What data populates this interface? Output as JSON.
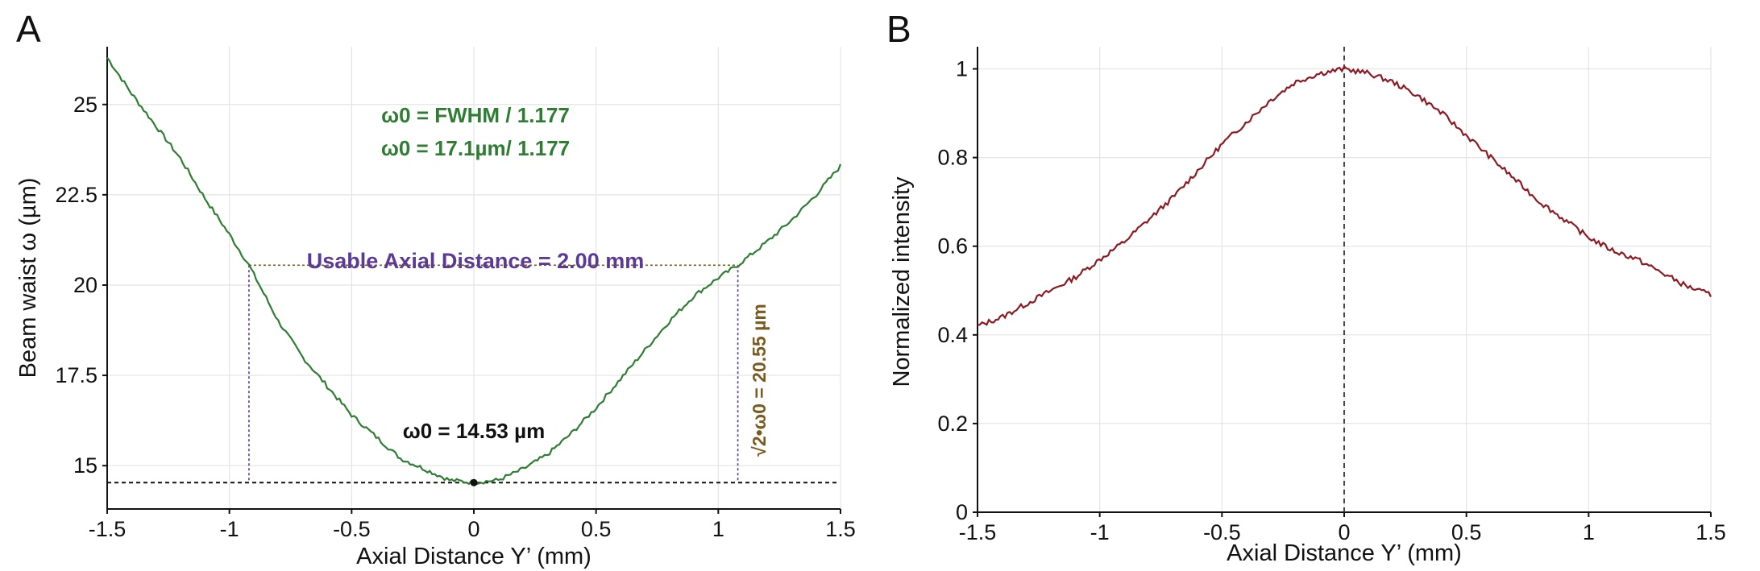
{
  "panels": {
    "a": {
      "letter": "A"
    },
    "b": {
      "letter": "B"
    }
  },
  "colors": {
    "curve_a": "#2e7d32",
    "curve_b": "#8b1a22",
    "usable": "#5b3a95",
    "threshold": "#7a5a1e",
    "baseline": "#111111",
    "grid": "#e4e4e4"
  },
  "annotations": {
    "formula_line1": "ω0 = FWHM / 1.177",
    "formula_line2": "ω0 = 17.1µm/ 1.177",
    "usable": "Usable Axial Distance = 2.00 mm",
    "min_waist": "ω0 = 14.53 µm",
    "threshold": "√2•ω0 = 20.55 µm"
  },
  "chart_data": [
    {
      "type": "line",
      "panel": "A",
      "xlabel": "Axial Distance Y’ (mm)",
      "ylabel": "Beam waist ω (µm)",
      "xlim": [
        -1.5,
        1.5
      ],
      "ylim": [
        13.8,
        26.6
      ],
      "xticks": [
        -1.5,
        -1,
        -0.5,
        0,
        0.5,
        1,
        1.5
      ],
      "xtick_labels": [
        "-1.5",
        "-1",
        "-0.5",
        "0",
        "0.5",
        "1",
        "1.5"
      ],
      "yticks": [
        15,
        17.5,
        20,
        22.5,
        25
      ],
      "ytick_labels": [
        "15",
        "17.5",
        "20",
        "22.5",
        "25"
      ],
      "grid": true,
      "series": [
        {
          "x": [
            -1.5,
            -1.4,
            -1.3,
            -1.2,
            -1.1,
            -1.0,
            -0.92,
            -0.8,
            -0.7,
            -0.6,
            -0.5,
            -0.4,
            -0.3,
            -0.2,
            -0.1,
            0.0,
            0.1,
            0.2,
            0.3,
            0.4,
            0.5,
            0.6,
            0.7,
            0.8,
            0.9,
            1.0,
            1.08,
            1.2,
            1.3,
            1.4,
            1.5
          ],
          "y": [
            26.3,
            25.3,
            24.4,
            23.5,
            22.4,
            21.4,
            20.55,
            19.0,
            18.0,
            17.2,
            16.4,
            15.8,
            15.2,
            14.9,
            14.6,
            14.53,
            14.6,
            14.9,
            15.3,
            15.9,
            16.6,
            17.4,
            18.2,
            19.0,
            19.7,
            20.2,
            20.55,
            21.2,
            21.8,
            22.5,
            23.3
          ]
        }
      ],
      "markers": [
        {
          "x": 0.0,
          "y": 14.53
        }
      ],
      "reference_lines": {
        "baseline_y": 14.53,
        "threshold_y": 20.55,
        "left_x": -0.92,
        "right_x": 1.08
      }
    },
    {
      "type": "line",
      "panel": "B",
      "xlabel": "Axial Distance Y’ (mm)",
      "ylabel": "Normalized intensity",
      "xlim": [
        -1.5,
        1.5
      ],
      "ylim": [
        0,
        1.05
      ],
      "xticks": [
        -1.5,
        -1,
        -0.5,
        0,
        0.5,
        1,
        1.5
      ],
      "xtick_labels": [
        "-1.5",
        "-1",
        "-0.5",
        "0",
        "0.5",
        "1",
        "1.5"
      ],
      "yticks": [
        0,
        0.2,
        0.4,
        0.6,
        0.8,
        1
      ],
      "ytick_labels": [
        "0",
        "0.2",
        "0.4",
        "0.6",
        "0.8",
        "1"
      ],
      "grid": true,
      "vline_x": 0,
      "series": [
        {
          "x": [
            -1.5,
            -1.4,
            -1.3,
            -1.2,
            -1.1,
            -1.0,
            -0.9,
            -0.8,
            -0.7,
            -0.6,
            -0.5,
            -0.4,
            -0.3,
            -0.2,
            -0.1,
            0.0,
            0.1,
            0.2,
            0.3,
            0.4,
            0.5,
            0.6,
            0.7,
            0.8,
            0.9,
            1.0,
            1.1,
            1.2,
            1.3,
            1.4,
            1.5
          ],
          "y": [
            0.42,
            0.44,
            0.47,
            0.5,
            0.53,
            0.57,
            0.61,
            0.66,
            0.71,
            0.77,
            0.83,
            0.88,
            0.93,
            0.97,
            0.99,
            1.0,
            0.99,
            0.97,
            0.94,
            0.9,
            0.85,
            0.8,
            0.75,
            0.7,
            0.66,
            0.62,
            0.59,
            0.57,
            0.54,
            0.51,
            0.49
          ]
        }
      ]
    }
  ]
}
